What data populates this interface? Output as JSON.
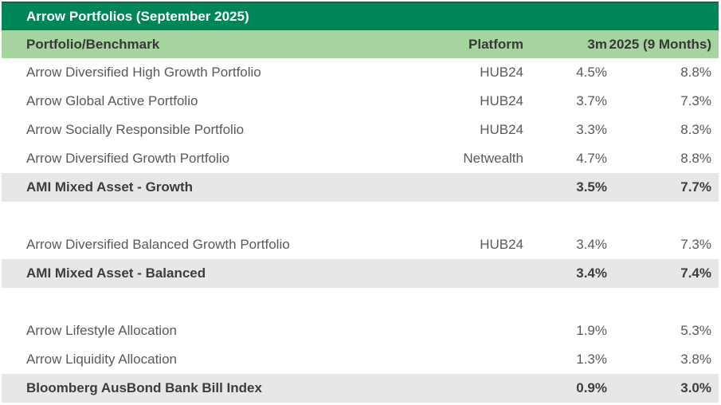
{
  "title": "Arrow Portfolios (September 2025)",
  "columns": {
    "name": "Portfolio/Benchmark",
    "platform": "Platform",
    "m3": "3m",
    "ytd": "2025 (9 Months)"
  },
  "rows": [
    {
      "type": "portfolio",
      "name": "Arrow Diversified High Growth Portfolio",
      "platform": "HUB24",
      "m3": "4.5%",
      "ytd": "8.8%"
    },
    {
      "type": "portfolio",
      "name": "Arrow Global Active Portfolio",
      "platform": "HUB24",
      "m3": "3.7%",
      "ytd": "7.3%"
    },
    {
      "type": "portfolio",
      "name": "Arrow Socially Responsible Portfolio",
      "platform": "HUB24",
      "m3": "3.3%",
      "ytd": "8.3%"
    },
    {
      "type": "portfolio",
      "name": "Arrow Diversified Growth Portfolio",
      "platform": "Netwealth",
      "m3": "4.7%",
      "ytd": "8.8%"
    },
    {
      "type": "benchmark",
      "name": "AMI Mixed Asset - Growth",
      "platform": "",
      "m3": "3.5%",
      "ytd": "7.7%"
    },
    {
      "type": "spacer",
      "name": "",
      "platform": "",
      "m3": "",
      "ytd": ""
    },
    {
      "type": "portfolio",
      "name": "Arrow Diversified Balanced Growth Portfolio",
      "platform": "HUB24",
      "m3": "3.4%",
      "ytd": "7.3%"
    },
    {
      "type": "benchmark",
      "name": "AMI Mixed Asset - Balanced",
      "platform": "",
      "m3": "3.4%",
      "ytd": "7.4%"
    },
    {
      "type": "spacer",
      "name": "",
      "platform": "",
      "m3": "",
      "ytd": ""
    },
    {
      "type": "portfolio",
      "name": "Arrow Lifestyle Allocation",
      "platform": "",
      "m3": "1.9%",
      "ytd": "5.3%"
    },
    {
      "type": "portfolio",
      "name": "Arrow Liquidity Allocation",
      "platform": "",
      "m3": "1.3%",
      "ytd": "3.8%"
    },
    {
      "type": "benchmark",
      "name": "Bloomberg AusBond Bank Bill Index",
      "platform": "",
      "m3": "0.9%",
      "ytd": "3.0%"
    }
  ],
  "colors": {
    "title_bar_bg": "#008556",
    "title_text": "#ffffff",
    "header_bg": "#a5d49e",
    "header_text": "#383838",
    "benchmark_row_bg": "#e7e7e7",
    "body_text": "#595959"
  }
}
